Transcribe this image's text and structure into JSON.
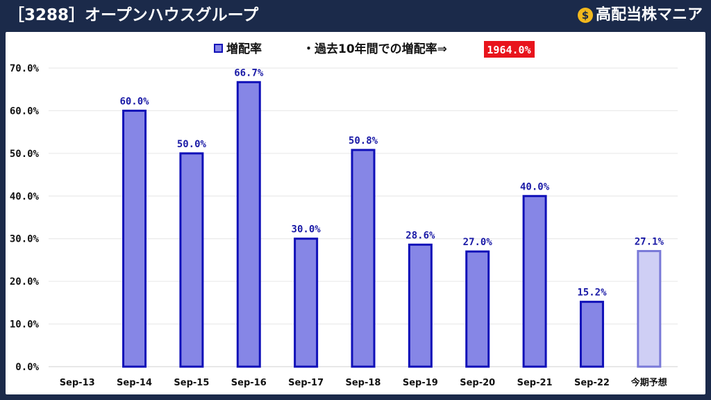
{
  "header": {
    "title": "［3288］オープンハウスグループ",
    "brand": "高配当株マニア",
    "brand_icon": "money-bag-icon"
  },
  "legend": {
    "series_label": "増配率",
    "note": "・過去10年間での増配率⇒",
    "note_value": "1964.0%"
  },
  "colors": {
    "bar_fill": "#8686e6",
    "bar_stroke": "#1010b8",
    "forecast_fill": "#cfcff5",
    "forecast_stroke": "#7a7ad8",
    "label": "#1a1aa6",
    "badge": "#e8141c",
    "header_bg": "#1b2a4a"
  },
  "chart_data": {
    "type": "bar",
    "categories": [
      "Sep-13",
      "Sep-14",
      "Sep-15",
      "Sep-16",
      "Sep-17",
      "Sep-18",
      "Sep-19",
      "Sep-20",
      "Sep-21",
      "Sep-22",
      "今期予想"
    ],
    "series": [
      {
        "name": "増配率",
        "values": [
          null,
          60.0,
          50.0,
          66.7,
          30.0,
          50.8,
          28.6,
          27.0,
          40.0,
          15.2,
          27.1
        ],
        "labels": [
          "",
          "60.0%",
          "50.0%",
          "66.7%",
          "30.0%",
          "50.8%",
          "28.6%",
          "27.0%",
          "40.0%",
          "15.2%",
          "27.1%"
        ]
      }
    ],
    "forecast_index": 10,
    "ylim": [
      0,
      70
    ],
    "yticks": [
      "0.0%",
      "10.0%",
      "20.0%",
      "30.0%",
      "40.0%",
      "50.0%",
      "60.0%",
      "70.0%"
    ],
    "grid": true,
    "legend_position": "top-center"
  }
}
